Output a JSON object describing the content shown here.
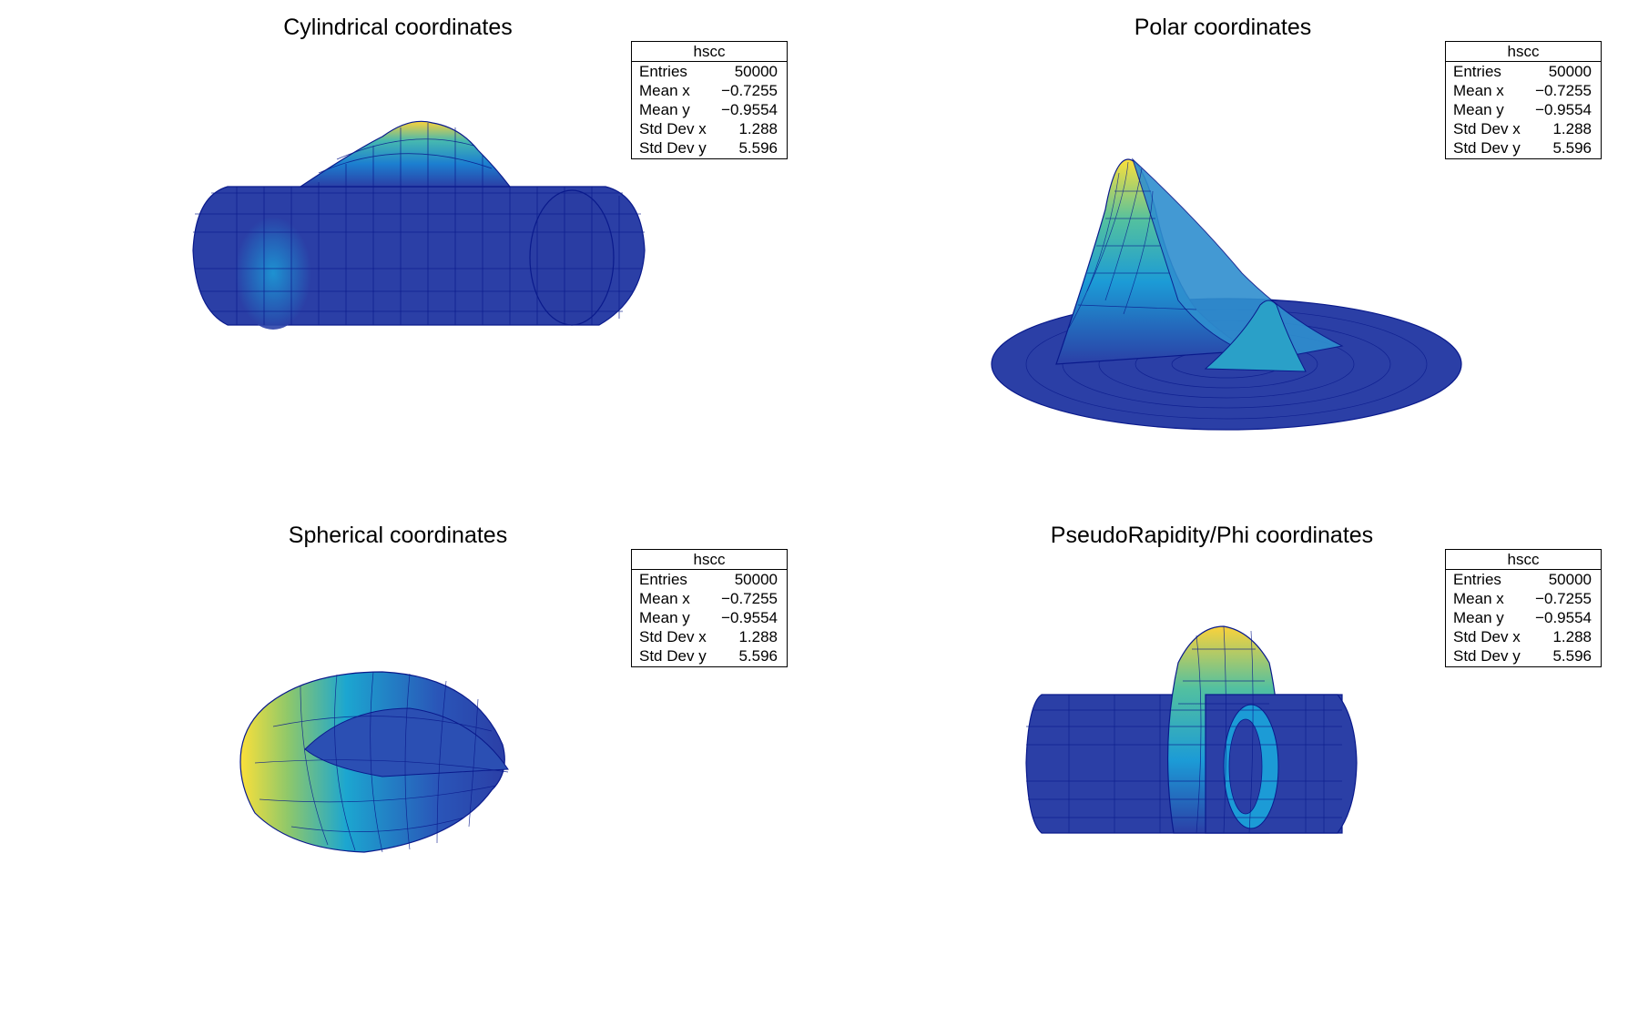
{
  "canvas_title": "",
  "stats_box": {
    "name": "hscc",
    "rows": [
      {
        "key": "Entries",
        "value": "50000"
      },
      {
        "key": "Mean x",
        "value": "−0.7255"
      },
      {
        "key": "Mean y",
        "value": "−0.9554"
      },
      {
        "key": "Std Dev x",
        "value": "1.288"
      },
      {
        "key": "Std Dev y",
        "value": "5.596"
      }
    ]
  },
  "colors": {
    "low": "#2b3fa6",
    "mid": "#1c9bd6",
    "high_mid": "#52c0a0",
    "high": "#fbe03a",
    "wire": "#0a1a8c"
  },
  "chart_data": [
    {
      "type": "surface",
      "title": "Cylindrical coordinates",
      "coordinate_system": "cylindrical",
      "histogram": "hscc",
      "colormap": "blue-to-yellow",
      "peak_region": "upper-center"
    },
    {
      "type": "surface",
      "title": "Polar coordinates",
      "coordinate_system": "polar",
      "histogram": "hscc",
      "colormap": "blue-to-yellow",
      "peak_region": "left-center"
    },
    {
      "type": "surface",
      "title": "Spherical coordinates",
      "coordinate_system": "spherical",
      "histogram": "hscc",
      "colormap": "blue-to-yellow",
      "peak_region": "left"
    },
    {
      "type": "surface",
      "title": "PseudoRapidity/Phi coordinates",
      "coordinate_system": "pseudorapidity-phi",
      "histogram": "hscc",
      "colormap": "blue-to-yellow",
      "peak_region": "upper-center"
    }
  ]
}
